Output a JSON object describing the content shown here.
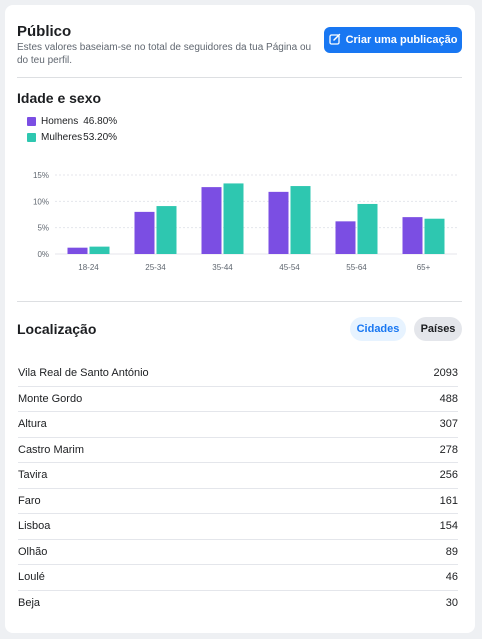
{
  "audience": {
    "title": "Público",
    "subtitle": "Estes valores baseiam-se no total de seguidores da tua Página ou do teu perfil.",
    "create_button_label": "Criar uma publicação",
    "create_button_icon": "edit-icon"
  },
  "age_gender": {
    "title": "Idade e sexo",
    "legend": [
      {
        "label": "Homens",
        "pct": "46.80%",
        "color": "#7b4ee3"
      },
      {
        "label": "Mulheres",
        "pct": "53.20%",
        "color": "#2ec7b0"
      }
    ]
  },
  "chart_data": {
    "type": "bar",
    "categories": [
      "18-24",
      "25-34",
      "35-44",
      "45-54",
      "55-64",
      "65+"
    ],
    "series": [
      {
        "name": "Homens",
        "values": [
          1.2,
          8.0,
          12.7,
          11.8,
          6.2,
          7.0
        ],
        "color": "#7b4ee3"
      },
      {
        "name": "Mulheres",
        "values": [
          1.4,
          9.1,
          13.4,
          12.9,
          9.5,
          6.7
        ],
        "color": "#2ec7b0"
      }
    ],
    "yticks": [
      "0%",
      "5%",
      "10%",
      "15%"
    ],
    "ylim": [
      0,
      15
    ],
    "grid": true
  },
  "location": {
    "title": "Localização",
    "tabs": [
      {
        "label": "Cidades",
        "active": true
      },
      {
        "label": "Países",
        "active": false
      }
    ],
    "rows": [
      {
        "name": "Vila Real de Santo António",
        "count": "2093"
      },
      {
        "name": "Monte Gordo",
        "count": "488"
      },
      {
        "name": "Altura",
        "count": "307"
      },
      {
        "name": "Castro Marim",
        "count": "278"
      },
      {
        "name": "Tavira",
        "count": "256"
      },
      {
        "name": "Faro",
        "count": "161"
      },
      {
        "name": "Lisboa",
        "count": "154"
      },
      {
        "name": "Olhão",
        "count": "89"
      },
      {
        "name": "Loulé",
        "count": "46"
      },
      {
        "name": "Beja",
        "count": "30"
      }
    ]
  }
}
